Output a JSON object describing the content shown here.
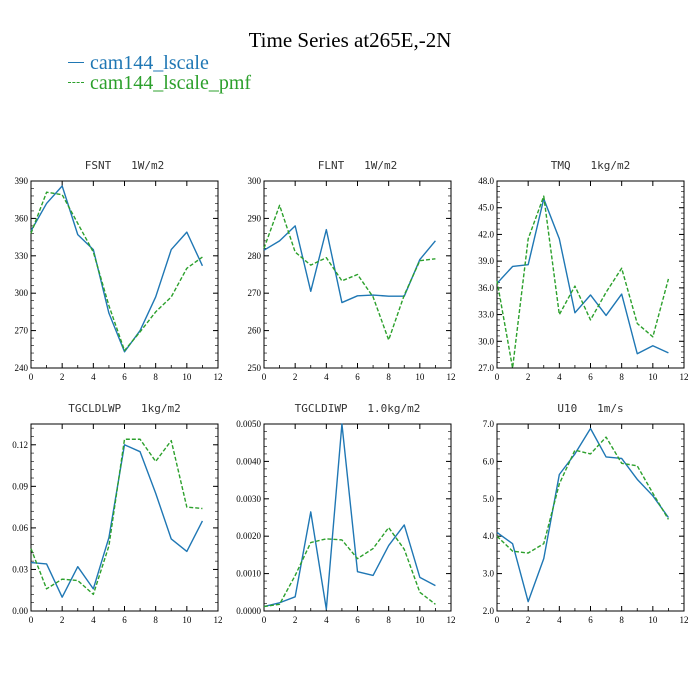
{
  "title": "Time Series at265E,-2N",
  "colors": {
    "series_1": "#1f77b4",
    "series_2": "#2ca02c"
  },
  "legend": [
    {
      "label": "cam144_lscale",
      "color": "#1f77b4",
      "style": "solid"
    },
    {
      "label": "cam144_lscale_pmf",
      "color": "#2ca02c",
      "style": "dashed"
    }
  ],
  "chart_data": [
    {
      "type": "line",
      "title": "FSNT   1W/m2",
      "xlim": [
        0,
        12
      ],
      "ylim": [
        240,
        390
      ],
      "xticks": [
        "0",
        "2",
        "4",
        "6",
        "8",
        "10",
        "12"
      ],
      "yticks": [
        "240",
        "270",
        "300",
        "330",
        "360",
        "390"
      ],
      "x": [
        0,
        1,
        2,
        3,
        4,
        5,
        6,
        7,
        8,
        9,
        10,
        11
      ],
      "series": [
        {
          "name": "cam144_lscale",
          "values": [
            350,
            372,
            386,
            347,
            335,
            284,
            253,
            270,
            297,
            335,
            349,
            322
          ]
        },
        {
          "name": "cam144_lscale_pmf",
          "values": [
            348,
            381,
            379,
            356,
            333,
            290,
            254,
            269,
            285,
            297,
            320,
            329
          ]
        }
      ]
    },
    {
      "type": "line",
      "title": "FLNT   1W/m2",
      "xlim": [
        0,
        12
      ],
      "ylim": [
        250,
        300
      ],
      "xticks": [
        "0",
        "2",
        "4",
        "6",
        "8",
        "10",
        "12"
      ],
      "yticks": [
        "250",
        "260",
        "270",
        "280",
        "290",
        "300"
      ],
      "x": [
        0,
        1,
        2,
        3,
        4,
        5,
        6,
        7,
        8,
        9,
        10,
        11
      ],
      "series": [
        {
          "name": "cam144_lscale",
          "values": [
            281.5,
            284,
            288,
            270.5,
            287,
            267.5,
            269.3,
            269.5,
            269.2,
            269.2,
            279,
            284
          ]
        },
        {
          "name": "cam144_lscale_pmf",
          "values": [
            282,
            293.5,
            281,
            277.5,
            279.5,
            273.3,
            275,
            269,
            257.5,
            269.5,
            278.7,
            279.2
          ]
        }
      ]
    },
    {
      "type": "line",
      "title": "TMQ   1kg/m2",
      "xlim": [
        0,
        12
      ],
      "ylim": [
        27,
        48
      ],
      "xticks": [
        "0",
        "2",
        "4",
        "6",
        "8",
        "10",
        "12"
      ],
      "yticks": [
        "27.0",
        "30.0",
        "33.0",
        "36.0",
        "39.0",
        "42.0",
        "45.0",
        "48.0"
      ],
      "x": [
        0,
        1,
        2,
        3,
        4,
        5,
        6,
        7,
        8,
        9,
        10,
        11
      ],
      "series": [
        {
          "name": "cam144_lscale",
          "values": [
            36.5,
            38.4,
            38.6,
            46.0,
            41.5,
            33.2,
            35.2,
            32.9,
            35.3,
            28.6,
            29.5,
            28.7
          ]
        },
        {
          "name": "cam144_lscale_pmf",
          "values": [
            36.8,
            27.0,
            41.5,
            46.3,
            33.0,
            36.2,
            32.4,
            35.5,
            38.2,
            32.0,
            30.5,
            37.0
          ]
        }
      ]
    },
    {
      "type": "line",
      "title": "TGCLDLWP   1kg/m2",
      "xlim": [
        0,
        12
      ],
      "ylim": [
        0,
        0.135
      ],
      "xticks": [
        "0",
        "2",
        "4",
        "6",
        "8",
        "10",
        "12"
      ],
      "yticks": [
        "0.00",
        "0.03",
        "0.06",
        "0.09",
        "0.12"
      ],
      "x": [
        0,
        1,
        2,
        3,
        4,
        5,
        6,
        7,
        8,
        9,
        10,
        11
      ],
      "series": [
        {
          "name": "cam144_lscale",
          "values": [
            0.035,
            0.034,
            0.01,
            0.032,
            0.016,
            0.053,
            0.12,
            0.115,
            0.085,
            0.052,
            0.043,
            0.065
          ]
        },
        {
          "name": "cam144_lscale_pmf",
          "values": [
            0.045,
            0.016,
            0.023,
            0.022,
            0.012,
            0.047,
            0.124,
            0.124,
            0.108,
            0.123,
            0.075,
            0.074
          ]
        }
      ]
    },
    {
      "type": "line",
      "title": "TGCLDIWP   1.0kg/m2",
      "xlim": [
        0,
        12
      ],
      "ylim": [
        0,
        0.005
      ],
      "xticks": [
        "0",
        "2",
        "4",
        "6",
        "8",
        "10",
        "12"
      ],
      "yticks": [
        "0.0000",
        "0.0010",
        "0.0020",
        "0.0030",
        "0.0040",
        "0.0050"
      ],
      "x": [
        0,
        1,
        2,
        3,
        4,
        5,
        6,
        7,
        8,
        9,
        10,
        11
      ],
      "series": [
        {
          "name": "cam144_lscale",
          "values": [
            0.00012,
            0.00022,
            0.00038,
            0.00265,
            5e-05,
            0.005,
            0.00105,
            0.00095,
            0.00175,
            0.0023,
            0.0009,
            0.00068
          ]
        },
        {
          "name": "cam144_lscale_pmf",
          "values": [
            0.00012,
            0.00018,
            0.00095,
            0.00183,
            0.00193,
            0.0019,
            0.0014,
            0.00167,
            0.00223,
            0.00165,
            0.0005,
            0.00018
          ]
        }
      ]
    },
    {
      "type": "line",
      "title": "U10   1m/s",
      "xlim": [
        0,
        12
      ],
      "ylim": [
        2,
        7
      ],
      "xticks": [
        "0",
        "2",
        "4",
        "6",
        "8",
        "10",
        "12"
      ],
      "yticks": [
        "2.0",
        "3.0",
        "4.0",
        "5.0",
        "6.0",
        "7.0"
      ],
      "x": [
        0,
        1,
        2,
        3,
        4,
        5,
        6,
        7,
        8,
        9,
        10,
        11
      ],
      "series": [
        {
          "name": "cam144_lscale",
          "values": [
            4.1,
            3.8,
            2.25,
            3.4,
            5.65,
            6.2,
            6.88,
            6.12,
            6.08,
            5.52,
            5.08,
            4.5
          ]
        },
        {
          "name": "cam144_lscale_pmf",
          "values": [
            4.0,
            3.6,
            3.55,
            3.8,
            5.4,
            6.3,
            6.2,
            6.65,
            5.95,
            5.88,
            5.15,
            4.45
          ]
        }
      ]
    }
  ]
}
